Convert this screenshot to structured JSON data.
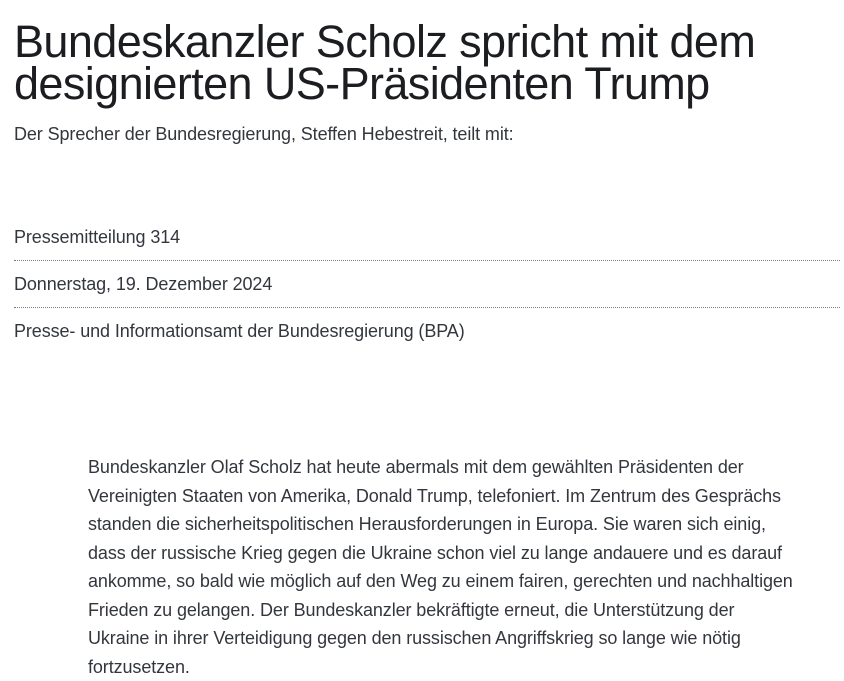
{
  "article": {
    "title": "Bundeskanzler Scholz spricht mit dem designierten US-Präsidenten Trump",
    "subtitle": "Der Sprecher der Bundesregierung, Steffen Hebestreit, teilt mit:",
    "meta": {
      "items": [
        {
          "label": "Pressemitteilung 314"
        },
        {
          "label": "Donnerstag, 19. Dezember 2024"
        },
        {
          "label": "Presse- und Informationsamt der Bundesregierung (BPA)"
        }
      ]
    },
    "body": "Bundeskanzler Olaf Scholz hat heute abermals mit dem gewählten Präsidenten der Vereinigten Staaten von Amerika, Donald Trump, telefoniert. Im Zentrum des Gesprächs standen die sicherheitspolitischen Herausforderungen in Europa. Sie waren sich einig, dass der russische Krieg gegen die Ukraine schon viel zu lange andauere und es darauf ankomme, so bald wie möglich auf den Weg zu einem fairen, gerechten und nachhaltigen Frieden zu gelangen. Der Bundeskanzler bekräftigte erneut, die Unterstützung der Ukraine in ihrer Verteidigung gegen den russischen Angriffskrieg so lange wie nötig fortzusetzen."
  },
  "colors": {
    "headline": "#1b1d21",
    "text": "#33373d",
    "divider": "#7d7d7d",
    "background": "#ffffff"
  }
}
